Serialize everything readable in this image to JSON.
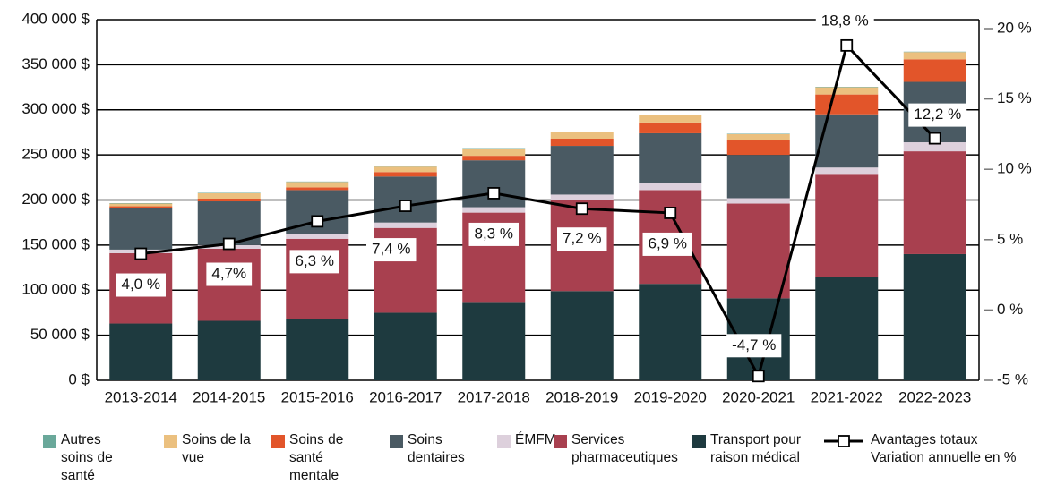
{
  "chart_data": {
    "type": "bar",
    "stacked": true,
    "categories": [
      "2013-2014",
      "2014-2015",
      "2015-2016",
      "2016-2017",
      "2017-2018",
      "2018-2019",
      "2019-2020",
      "2020-2021",
      "2021-2022",
      "2022-2023"
    ],
    "series": [
      {
        "name": "Autres soins de santé",
        "color": "#6aa89a",
        "values": [
          500,
          500,
          500,
          500,
          500,
          500,
          500,
          500,
          500,
          500
        ]
      },
      {
        "name": "Soins de la vue",
        "color": "#ebc07f",
        "values": [
          3000,
          6000,
          6000,
          6000,
          8000,
          7000,
          8000,
          7000,
          8000,
          8000
        ]
      },
      {
        "name": "Soins de santé mentale",
        "color": "#e2552a",
        "values": [
          2000,
          3000,
          3000,
          5000,
          5000,
          8000,
          12000,
          16000,
          22000,
          25000
        ]
      },
      {
        "name": "Soins dentaires",
        "color": "#4a5a63",
        "values": [
          46000,
          48500,
          49000,
          51000,
          52000,
          54000,
          55000,
          48000,
          59000,
          67000
        ]
      },
      {
        "name": "ÉMFM",
        "color": "#ddd0dc",
        "values": [
          4000,
          4000,
          5000,
          6000,
          6000,
          6000,
          8000,
          6000,
          8000,
          10000
        ]
      },
      {
        "name": "Services pharmaceutiques",
        "color": "#a8404f",
        "values": [
          78000,
          80000,
          89000,
          94000,
          100000,
          101000,
          104000,
          105000,
          113000,
          114000
        ]
      },
      {
        "name": "Transport pour raison médical",
        "color": "#1e3a3f",
        "values": [
          63000,
          66000,
          68000,
          75000,
          86000,
          99000,
          107000,
          91000,
          115000,
          140000
        ]
      },
      {
        "name": "Avantages totaux Variation annuelle en %",
        "type": "line",
        "axis": "y2",
        "color": "#000000",
        "values": [
          4.0,
          4.7,
          6.3,
          7.4,
          8.3,
          7.2,
          6.9,
          -4.7,
          18.8,
          12.2
        ],
        "value_labels": [
          "4,0 %",
          "4,7%",
          "6,3 %",
          "7,4 %",
          "8,3 %",
          "7,2 %",
          "6,9 %",
          "-4,7 %",
          "18,8 %",
          "12,2 %"
        ]
      }
    ],
    "ylim": [
      0,
      400000
    ],
    "yticks": [
      {
        "value": 0,
        "label": "0 $"
      },
      {
        "value": 50000,
        "label": "50 000 $"
      },
      {
        "value": 100000,
        "label": "100 000 $"
      },
      {
        "value": 150000,
        "label": "150 000 $"
      },
      {
        "value": 200000,
        "label": "200 000 $"
      },
      {
        "value": 250000,
        "label": "250 000 $"
      },
      {
        "value": 300000,
        "label": "300 000 $"
      },
      {
        "value": 350000,
        "label": "350 000 $"
      },
      {
        "value": 400000,
        "label": "400 000 $"
      }
    ],
    "y2lim": [
      -5,
      20
    ],
    "y2ticks": [
      {
        "value": -5,
        "label": "-5 %"
      },
      {
        "value": 0,
        "label": "0 %"
      },
      {
        "value": 5,
        "label": "5 %"
      },
      {
        "value": 10,
        "label": "10 %"
      },
      {
        "value": 15,
        "label": "15 %"
      },
      {
        "value": 20,
        "label": "20 %"
      }
    ],
    "grid": true,
    "legend": "bottom"
  }
}
